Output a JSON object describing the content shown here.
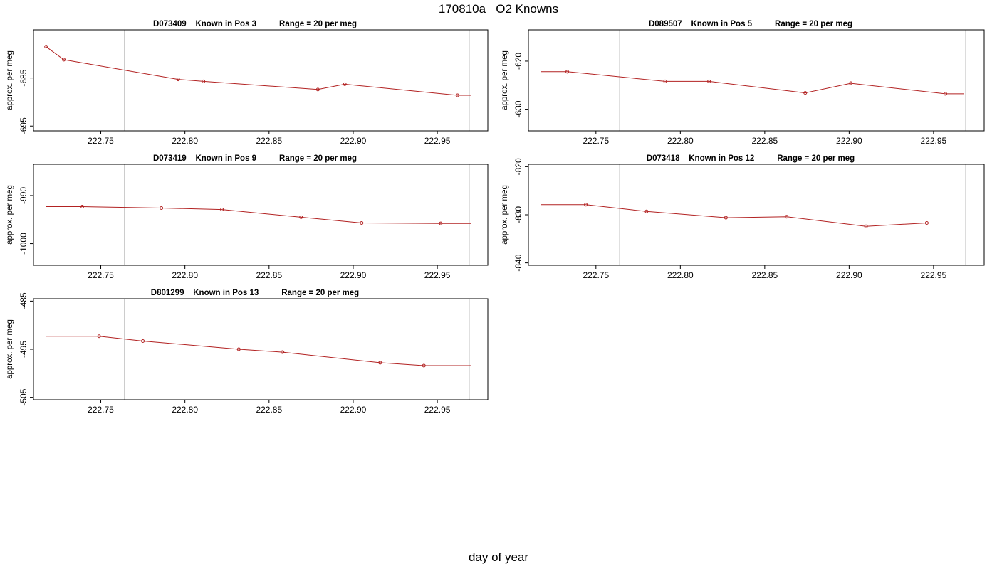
{
  "page": {
    "title": "170810a   O2 Knowns",
    "xlabel": "day of year"
  },
  "colors": {
    "series": "#b22222",
    "vline": "#cccccc",
    "frame": "#000000"
  },
  "chart_data": [
    {
      "type": "line",
      "title": "D073409    Known in Pos 3          Range = 20 per meg",
      "ylabel": "approx. per meg",
      "xlim": [
        222.71,
        222.98
      ],
      "ylim": [
        -696,
        -675
      ],
      "xticks": [
        222.75,
        222.8,
        222.85,
        222.9,
        222.95
      ],
      "xtick_labels": [
        "222.75",
        "222.80",
        "222.85",
        "222.90",
        "222.95"
      ],
      "yticks": [
        -685,
        -695
      ],
      "ytick_labels": [
        "-685",
        "-695"
      ],
      "vlines": [
        222.764,
        222.969
      ],
      "x": [
        222.7175,
        222.728,
        222.796,
        222.811,
        222.879,
        222.895,
        222.962,
        222.97
      ],
      "y": [
        -678.5,
        -681.2,
        -685.3,
        -685.7,
        -687.4,
        -686.3,
        -688.6,
        -688.6
      ],
      "markers": [
        true,
        true,
        true,
        true,
        true,
        true,
        true,
        false
      ]
    },
    {
      "type": "line",
      "title": "D089507    Known in Pos 5          Range = 20 per meg",
      "ylabel": "approx. per meg",
      "xlim": [
        222.71,
        222.98
      ],
      "ylim": [
        -634.5,
        -613.5
      ],
      "xticks": [
        222.75,
        222.8,
        222.85,
        222.9,
        222.95
      ],
      "xtick_labels": [
        "222.75",
        "222.80",
        "222.85",
        "222.90",
        "222.95"
      ],
      "yticks": [
        -620,
        -630
      ],
      "ytick_labels": [
        "-620",
        "-630"
      ],
      "vlines": [
        222.764,
        222.969
      ],
      "x": [
        222.7175,
        222.733,
        222.791,
        222.817,
        222.874,
        222.901,
        222.957,
        222.968
      ],
      "y": [
        -622.2,
        -622.2,
        -624.2,
        -624.2,
        -626.6,
        -624.6,
        -626.8,
        -626.8
      ],
      "markers": [
        false,
        true,
        true,
        true,
        true,
        true,
        true,
        false
      ]
    },
    {
      "type": "line",
      "title": "D073419    Known in Pos 9          Range = 20 per meg",
      "ylabel": "approx. per meg",
      "xlim": [
        222.71,
        222.98
      ],
      "ylim": [
        -1004.5,
        -983.5
      ],
      "xticks": [
        222.75,
        222.8,
        222.85,
        222.9,
        222.95
      ],
      "xtick_labels": [
        "222.75",
        "222.80",
        "222.85",
        "222.90",
        "222.95"
      ],
      "yticks": [
        -990,
        -1000
      ],
      "ytick_labels": [
        "-990",
        "-1000"
      ],
      "vlines": [
        222.764,
        222.969
      ],
      "x": [
        222.7175,
        222.739,
        222.786,
        222.822,
        222.869,
        222.905,
        222.952,
        222.97
      ],
      "y": [
        -992.3,
        -992.3,
        -992.6,
        -992.9,
        -994.5,
        -995.7,
        -995.8,
        -995.8
      ],
      "markers": [
        false,
        true,
        true,
        true,
        true,
        true,
        true,
        false
      ]
    },
    {
      "type": "line",
      "title": "D073418    Known in Pos 12          Range = 20 per meg",
      "ylabel": "approx. per meg",
      "xlim": [
        222.71,
        222.98
      ],
      "ylim": [
        -840.5,
        -819.5
      ],
      "xticks": [
        222.75,
        222.8,
        222.85,
        222.9,
        222.95
      ],
      "xtick_labels": [
        "222.75",
        "222.80",
        "222.85",
        "222.90",
        "222.95"
      ],
      "yticks": [
        -820,
        -830,
        -840
      ],
      "ytick_labels": [
        "-820",
        "-830",
        "-840"
      ],
      "vlines": [
        222.764,
        222.969
      ],
      "x": [
        222.7175,
        222.744,
        222.78,
        222.827,
        222.863,
        222.91,
        222.946,
        222.968
      ],
      "y": [
        -827.9,
        -827.9,
        -829.3,
        -830.6,
        -830.4,
        -832.4,
        -831.7,
        -831.7
      ],
      "markers": [
        false,
        true,
        true,
        true,
        true,
        true,
        true,
        false
      ]
    },
    {
      "type": "line",
      "title": "D801299    Known in Pos 13          Range = 20 per meg",
      "ylabel": "approx. per meg",
      "xlim": [
        222.71,
        222.98
      ],
      "ylim": [
        -505.5,
        -484.5
      ],
      "xticks": [
        222.75,
        222.8,
        222.85,
        222.9,
        222.95
      ],
      "xtick_labels": [
        "222.75",
        "222.80",
        "222.85",
        "222.90",
        "222.95"
      ],
      "yticks": [
        -485,
        -495,
        -505
      ],
      "ytick_labels": [
        "-485",
        "-495",
        "-505"
      ],
      "vlines": [
        222.764,
        222.969
      ],
      "x": [
        222.7175,
        222.749,
        222.775,
        222.832,
        222.858,
        222.916,
        222.942,
        222.97
      ],
      "y": [
        -492.3,
        -492.3,
        -493.3,
        -495.0,
        -495.6,
        -497.8,
        -498.4,
        -498.4
      ],
      "markers": [
        false,
        true,
        true,
        true,
        true,
        true,
        true,
        false
      ]
    }
  ]
}
